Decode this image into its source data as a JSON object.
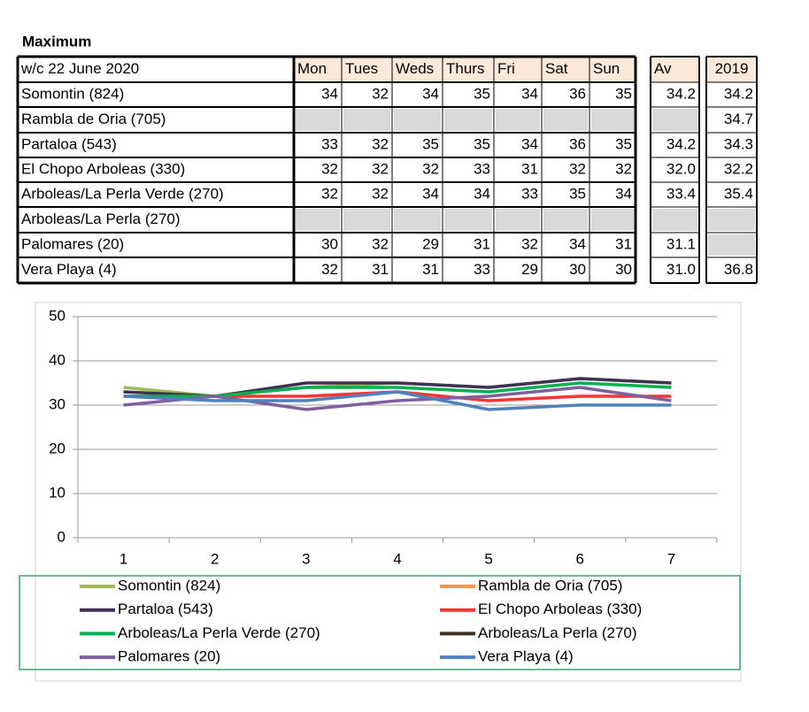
{
  "title": "Maximum",
  "table": {
    "header": [
      "w/c  22 June 2020",
      "Mon",
      "Tues",
      "Weds",
      "Thurs",
      "Fri",
      "Sat",
      "Sun"
    ],
    "av_header": "Av",
    "prev_header": "2019",
    "rows": [
      {
        "name": "Somontin (824)",
        "values": [
          34,
          32,
          34,
          35,
          34,
          36,
          35
        ],
        "av": "34.2",
        "prev": "34.2"
      },
      {
        "name": "Rambla de Oria (705)",
        "values": [
          null,
          null,
          null,
          null,
          null,
          null,
          null
        ],
        "av": null,
        "prev": "34.7"
      },
      {
        "name": "Partaloa (543)",
        "values": [
          33,
          32,
          35,
          35,
          34,
          36,
          35
        ],
        "av": "34.2",
        "prev": "34.3"
      },
      {
        "name": "El Chopo  Arboleas (330)",
        "values": [
          32,
          32,
          32,
          33,
          31,
          32,
          32
        ],
        "av": "32.0",
        "prev": "32.2"
      },
      {
        "name": "Arboleas/La Perla Verde (270)",
        "values": [
          32,
          32,
          34,
          34,
          33,
          35,
          34
        ],
        "av": "33.4",
        "prev": "35.4"
      },
      {
        "name": "Arboleas/La Perla (270)",
        "values": [
          null,
          null,
          null,
          null,
          null,
          null,
          null
        ],
        "av": null,
        "prev": null
      },
      {
        "name": "Palomares (20)",
        "values": [
          30,
          32,
          29,
          31,
          32,
          34,
          31
        ],
        "av": "31.1",
        "prev": null
      },
      {
        "name": "Vera Playa (4)",
        "values": [
          32,
          31,
          31,
          33,
          29,
          30,
          30
        ],
        "av": "31.0",
        "prev": "36.8"
      }
    ]
  },
  "chart_data": {
    "type": "line",
    "categories": [
      "1",
      "2",
      "3",
      "4",
      "5",
      "6",
      "7"
    ],
    "ylim": [
      0,
      50
    ],
    "yticks": [
      0,
      10,
      20,
      30,
      40,
      50
    ],
    "grid": true,
    "series": [
      {
        "name": "Somontin (824)",
        "color": "#9bbb59",
        "values": [
          34,
          32,
          34,
          35,
          34,
          36,
          35
        ]
      },
      {
        "name": "Rambla de Oria (705)",
        "color": "#f79646",
        "values": [
          null,
          null,
          null,
          null,
          null,
          null,
          null
        ]
      },
      {
        "name": "Partaloa (543)",
        "color": "#403152",
        "values": [
          33,
          32,
          35,
          35,
          34,
          36,
          35
        ]
      },
      {
        "name": "El Chopo  Arboleas (330)",
        "color": "#ff3333",
        "values": [
          32,
          32,
          32,
          33,
          31,
          32,
          32
        ]
      },
      {
        "name": "Arboleas/La Perla Verde (270)",
        "color": "#00b050",
        "values": [
          32,
          32,
          34,
          34,
          33,
          35,
          34
        ]
      },
      {
        "name": "Arboleas/La Perla (270)",
        "color": "#3f3020",
        "values": [
          null,
          null,
          null,
          null,
          null,
          null,
          null
        ]
      },
      {
        "name": "Palomares (20)",
        "color": "#7f5fa0",
        "values": [
          30,
          32,
          29,
          31,
          32,
          34,
          31
        ]
      },
      {
        "name": "Vera Playa (4)",
        "color": "#4f81bd",
        "values": [
          32,
          31,
          31,
          33,
          29,
          30,
          30
        ]
      }
    ]
  }
}
